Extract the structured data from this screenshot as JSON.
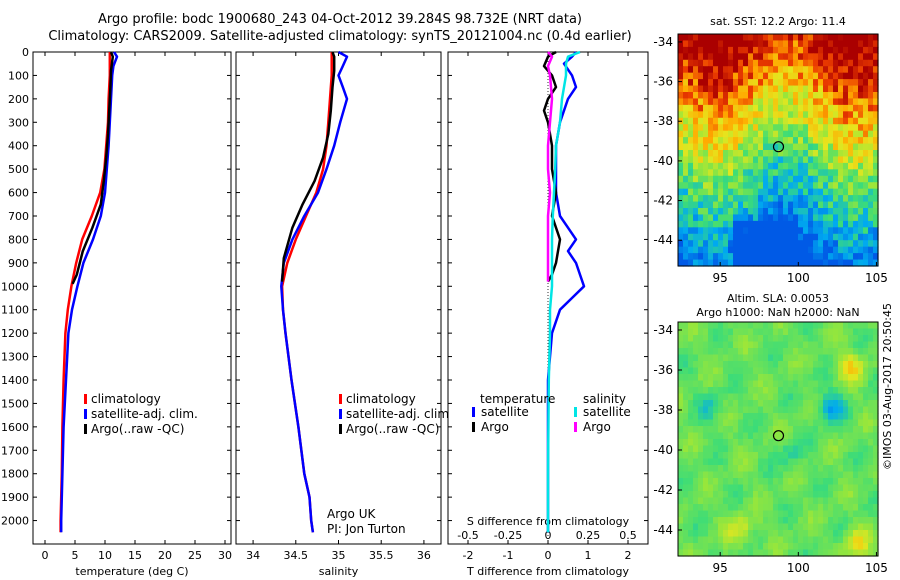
{
  "title": {
    "line1": "Argo profile: bodc 1900680_243 04-Oct-2012 39.284S 98.732E (NRT data)",
    "line2": "Climatology: CARS2009. Satellite-adjusted climatology: synTS_20121004.nc (0.4d earlier)"
  },
  "colors": {
    "climatology": "#ff0000",
    "satellite": "#0000ff",
    "argo": "#000000",
    "satellite_salinity": "#00e5e5",
    "argo_salinity": "#ff00ff"
  },
  "chart_data": [
    {
      "type": "line",
      "xlabel": "temperature (deg C)",
      "ylabel": "",
      "xlim": [
        -2,
        31
      ],
      "ylim": [
        2100,
        0
      ],
      "xticks": [
        "0",
        "5",
        "10",
        "15",
        "20",
        "25",
        "30"
      ],
      "yticks": [
        "0",
        "100",
        "200",
        "300",
        "400",
        "500",
        "600",
        "700",
        "800",
        "900",
        "1000",
        "1100",
        "1200",
        "1300",
        "1400",
        "1500",
        "1600",
        "1700",
        "1800",
        "1900",
        "2000"
      ],
      "legend": [
        "climatology",
        "satellite-adj. clim.",
        "Argo(..raw -QC)"
      ],
      "legend_position": "bottom-right",
      "series": [
        {
          "name": "climatology",
          "color_key": "climatology",
          "x": [
            10.8,
            10.8,
            10.6,
            10.5,
            10.2,
            9.9,
            9.2,
            7.8,
            6.2,
            5.2,
            4.4,
            3.8,
            3.4,
            3.1,
            2.9,
            2.8,
            2.7,
            2.6,
            2.6
          ],
          "y": [
            0,
            100,
            200,
            300,
            400,
            500,
            600,
            700,
            800,
            900,
            1000,
            1100,
            1200,
            1400,
            1600,
            1800,
            1900,
            2000,
            2050
          ]
        },
        {
          "name": "satellite-adj. clim.",
          "color_key": "satellite",
          "x": [
            11.5,
            12.0,
            11.4,
            11.2,
            11.0,
            10.8,
            10.6,
            10.3,
            10.0,
            9.3,
            8.0,
            6.4,
            5.4,
            4.5,
            3.9,
            3.5,
            3.1,
            2.9,
            2.8,
            2.7,
            2.7
          ],
          "y": [
            0,
            20,
            60,
            100,
            200,
            300,
            400,
            500,
            600,
            700,
            800,
            900,
            1000,
            1100,
            1200,
            1400,
            1600,
            1800,
            1900,
            2000,
            2050
          ]
        },
        {
          "name": "Argo(..raw -QC)",
          "color_key": "argo",
          "x": [
            11.0,
            11.3,
            11.0,
            10.9,
            10.7,
            10.5,
            10.2,
            9.8,
            9.3,
            7.9,
            6.3,
            5.3,
            4.6
          ],
          "y": [
            0,
            20,
            80,
            150,
            250,
            350,
            450,
            550,
            650,
            750,
            850,
            950,
            990
          ]
        }
      ]
    },
    {
      "type": "line",
      "xlabel": "salinity",
      "ylabel": "",
      "xlim": [
        33.8,
        36.2
      ],
      "ylim": [
        2100,
        0
      ],
      "xticks": [
        "34",
        "34.5",
        "35",
        "35.5",
        "36"
      ],
      "legend": [
        "climatology",
        "satellite-adj. clim.",
        "Argo(..raw -QC)"
      ],
      "legend_position": "bottom-right",
      "annotations": [
        "Argo UK",
        "PI: Jon Turton"
      ],
      "series": [
        {
          "name": "climatology",
          "color_key": "climatology",
          "x": [
            34.92,
            34.92,
            34.9,
            34.88,
            34.86,
            34.82,
            34.74,
            34.62,
            34.5,
            34.4,
            34.34,
            34.35,
            34.38,
            34.45,
            34.53,
            34.6,
            34.66,
            34.68,
            34.7
          ],
          "y": [
            0,
            100,
            200,
            300,
            400,
            500,
            600,
            700,
            800,
            900,
            1000,
            1100,
            1200,
            1400,
            1600,
            1800,
            1900,
            2000,
            2050
          ]
        },
        {
          "name": "satellite-adj. clim.",
          "color_key": "satellite",
          "x": [
            35.0,
            35.1,
            35.05,
            35.0,
            35.05,
            35.1,
            35.02,
            34.95,
            34.86,
            34.76,
            34.6,
            34.46,
            34.36,
            34.33,
            34.35,
            34.38,
            34.45,
            34.53,
            34.6,
            34.66,
            34.68,
            34.7
          ],
          "y": [
            0,
            20,
            60,
            100,
            150,
            200,
            300,
            400,
            500,
            600,
            700,
            800,
            900,
            1000,
            1100,
            1200,
            1400,
            1600,
            1800,
            1900,
            2000,
            2050
          ]
        },
        {
          "name": "Argo(..raw -QC)",
          "color_key": "argo",
          "x": [
            34.93,
            34.95,
            34.95,
            34.93,
            34.91,
            34.88,
            34.82,
            34.72,
            34.58,
            34.46,
            34.36,
            34.34
          ],
          "y": [
            0,
            20,
            80,
            150,
            250,
            350,
            450,
            550,
            650,
            750,
            880,
            980
          ]
        }
      ]
    },
    {
      "type": "line",
      "xlabel": "T difference from climatology",
      "xlabel2": "S difference from climatology",
      "xlim": [
        -2.5,
        2.5
      ],
      "ylim": [
        2100,
        0
      ],
      "xticks": [
        "-2",
        "-1",
        "0",
        "1",
        "2"
      ],
      "xticks2": [
        "-0.5",
        "-0.25",
        "0",
        "0.25",
        "0.5"
      ],
      "legend_titles": [
        "temperature",
        "salinity"
      ],
      "legend": [
        "satellite",
        "Argo",
        "satellite",
        "Argo"
      ],
      "legend_position": "bottom",
      "series": [
        {
          "name": "satellite",
          "group": "temperature",
          "color_key": "satellite",
          "x": [
            0.7,
            0.6,
            0.4,
            0.6,
            0.7,
            0.5,
            0.3,
            0.2,
            0.2,
            0.2,
            0.3,
            0.5,
            0.7,
            0.5,
            0.7,
            0.8,
            0.9,
            0.6,
            0.3,
            0.1,
            0.0,
            0.0,
            0.0,
            0.0
          ],
          "y": [
            0,
            20,
            50,
            100,
            150,
            200,
            300,
            400,
            500,
            600,
            700,
            750,
            800,
            850,
            900,
            950,
            1000,
            1050,
            1100,
            1200,
            1400,
            1600,
            1800,
            2050
          ]
        },
        {
          "name": "Argo",
          "group": "temperature",
          "color_key": "argo",
          "x": [
            0.2,
            0.0,
            -0.1,
            0.1,
            0.2,
            0.0,
            -0.1,
            0.0,
            0.1,
            0.1,
            0.2,
            0.1,
            0.3,
            0.2,
            0.1,
            0.0
          ],
          "y": [
            0,
            20,
            60,
            100,
            150,
            200,
            250,
            300,
            400,
            500,
            600,
            700,
            800,
            900,
            950,
            980
          ]
        },
        {
          "name": "satellite",
          "group": "salinity",
          "color_key": "satellite_salinity",
          "x": [
            0.8,
            0.5,
            0.45,
            0.45,
            0.35,
            0.3,
            0.2,
            0.18,
            0.15,
            0.12,
            0.1,
            0.1,
            0.1,
            0.05,
            0.05,
            0.02,
            0.0,
            0.0
          ],
          "y": [
            0,
            20,
            50,
            100,
            200,
            300,
            400,
            500,
            600,
            700,
            800,
            900,
            1000,
            1100,
            1200,
            1400,
            1800,
            2050
          ]
        },
        {
          "name": "Argo",
          "group": "salinity",
          "color_key": "argo_salinity",
          "x": [
            0.0,
            0.1,
            0.0,
            0.05,
            0.1,
            0.05,
            0.0,
            0.0,
            0.05,
            0.0,
            0.0,
            0.0
          ],
          "y": [
            0,
            20,
            60,
            100,
            200,
            300,
            400,
            500,
            600,
            700,
            800,
            980
          ]
        }
      ]
    },
    {
      "type": "heatmap",
      "title": "sat. SST: 12.2 Argo: 11.4",
      "xlim": [
        92.3,
        105.1
      ],
      "ylim": [
        -45.3,
        -33.6
      ],
      "xticks": [
        "95",
        "100",
        "105"
      ],
      "yticks": [
        "-34",
        "-36",
        "-38",
        "-40",
        "-42",
        "-44"
      ],
      "marker": {
        "lon": 98.732,
        "lat": -39.284
      }
    },
    {
      "type": "heatmap",
      "title_line1": "Altim. SLA: 0.0053",
      "title_line2": "Argo h1000: NaN h2000: NaN",
      "xlim": [
        92.3,
        105.1
      ],
      "ylim": [
        -45.3,
        -33.6
      ],
      "xticks": [
        "95",
        "100",
        "105"
      ],
      "yticks": [
        "-34",
        "-36",
        "-38",
        "-40",
        "-42",
        "-44"
      ],
      "marker": {
        "lon": 98.732,
        "lat": -39.284
      }
    }
  ],
  "watermark": "©IMOS 03-Aug-2017 20:50:45"
}
